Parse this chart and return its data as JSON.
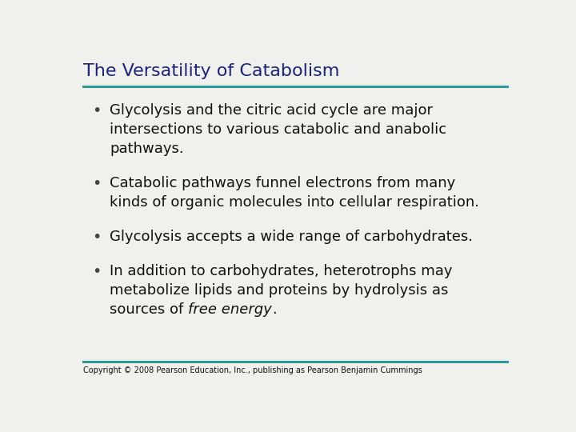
{
  "title": "The Versatility of Catabolism",
  "title_color": "#1a237e",
  "title_fontsize": 16,
  "teal_color": "#2e9b9b",
  "bullet_text_color": "#111111",
  "bullet_dot_color": "#444444",
  "background_color": "#f0f0ec",
  "copyright_text": "Copyright © 2008 Pearson Education, Inc., publishing as Pearson Benjamin Cummings",
  "copyright_fontsize": 7,
  "bullet_fontsize": 13,
  "line1_normal": "Glycolysis and the citric acid cycle are major",
  "line1_cont1": "intersections to various catabolic and anabolic",
  "line1_cont2": "pathways.",
  "line2_normal": "Catabolic pathways funnel electrons from many",
  "line2_cont1": "kinds of organic molecules into cellular respiration.",
  "line3_normal": "Glycolysis accepts a wide range of carbohydrates.",
  "line4_normal": "In addition to carbohydrates, heterotrophs may",
  "line4_cont1": "metabolize lipids and proteins by hydrolysis as",
  "line4_cont2_pre": "sources of ",
  "line4_cont2_italic": "free energy",
  "line4_cont2_post": "."
}
